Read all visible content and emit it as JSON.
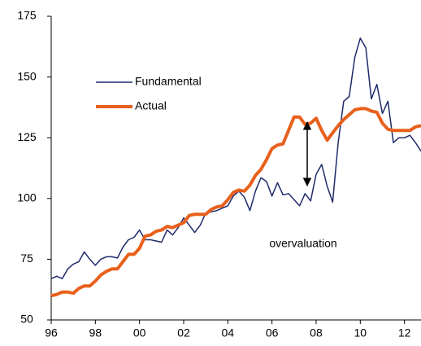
{
  "chart_data": {
    "type": "line",
    "x": [
      1996,
      1996.25,
      1996.5,
      1996.75,
      1997,
      1997.25,
      1997.5,
      1997.75,
      1998,
      1998.25,
      1998.5,
      1998.75,
      1999,
      1999.25,
      1999.5,
      1999.75,
      2000,
      2000.25,
      2000.5,
      2000.75,
      2001,
      2001.25,
      2001.5,
      2001.75,
      2002,
      2002.25,
      2002.5,
      2002.75,
      2003,
      2003.25,
      2003.5,
      2003.75,
      2004,
      2004.25,
      2004.5,
      2004.75,
      2005,
      2005.25,
      2005.5,
      2005.75,
      2006,
      2006.25,
      2006.5,
      2006.75,
      2007,
      2007.25,
      2007.5,
      2007.75,
      2008,
      2008.25,
      2008.5,
      2008.75,
      2009,
      2009.25,
      2009.5,
      2009.75,
      2010,
      2010.25,
      2010.5,
      2010.75,
      2011,
      2011.25,
      2011.5,
      2011.75,
      2012,
      2012.25,
      2012.5,
      2012.75
    ],
    "series": [
      {
        "name": "Fundamental",
        "color": "#1f2a6b",
        "width": 1.5,
        "values": [
          67,
          68,
          67,
          71,
          73,
          74,
          78,
          75,
          72.5,
          75,
          76,
          76,
          75.5,
          80,
          83,
          84,
          87,
          83,
          83,
          82.5,
          82,
          87,
          85,
          88,
          92,
          89,
          86,
          89,
          94,
          94.5,
          95,
          96,
          97,
          101,
          103,
          100.5,
          95,
          103,
          108.5,
          107,
          101,
          106.5,
          101.5,
          102,
          99.5,
          97,
          102,
          99,
          110,
          114,
          105,
          98.5,
          123,
          140,
          142,
          158,
          166,
          162,
          141,
          147,
          135,
          140,
          123,
          125,
          125,
          126,
          123,
          119.5
        ]
      },
      {
        "name": "Actual",
        "color": "#e8601c",
        "width": 4,
        "values": [
          60,
          60.5,
          61.5,
          61.5,
          61,
          63,
          64,
          64,
          66,
          68.5,
          70,
          71,
          71,
          74,
          77,
          77,
          79.5,
          84.5,
          85,
          86.5,
          87,
          88.5,
          88,
          89,
          90,
          93,
          93.5,
          93.5,
          93.5,
          95.5,
          96.5,
          97,
          99.5,
          102.5,
          103.5,
          103,
          105.5,
          109.5,
          112,
          116,
          120.5,
          122,
          122.5,
          128,
          133.5,
          133.5,
          130.5,
          131,
          133,
          128,
          124,
          127,
          130,
          132.5,
          134.5,
          136.5,
          137,
          137,
          136,
          135.5,
          131,
          128.5,
          128,
          128,
          128,
          128,
          129.5,
          130
        ]
      }
    ],
    "annotation": "overvaluation",
    "xlim": [
      1996,
      2012.75
    ],
    "xticks": [
      {
        "value": 1996,
        "label": "96"
      },
      {
        "value": 1998,
        "label": "98"
      },
      {
        "value": 2000,
        "label": "00"
      },
      {
        "value": 2002,
        "label": "02"
      },
      {
        "value": 2004,
        "label": "04"
      },
      {
        "value": 2006,
        "label": "06"
      },
      {
        "value": 2008,
        "label": "08"
      },
      {
        "value": 2010,
        "label": "10"
      },
      {
        "value": 2012,
        "label": "12"
      }
    ],
    "ylim": [
      50,
      175
    ],
    "yticks": [
      50,
      75,
      100,
      125,
      150,
      175
    ],
    "legend": "upper left"
  }
}
